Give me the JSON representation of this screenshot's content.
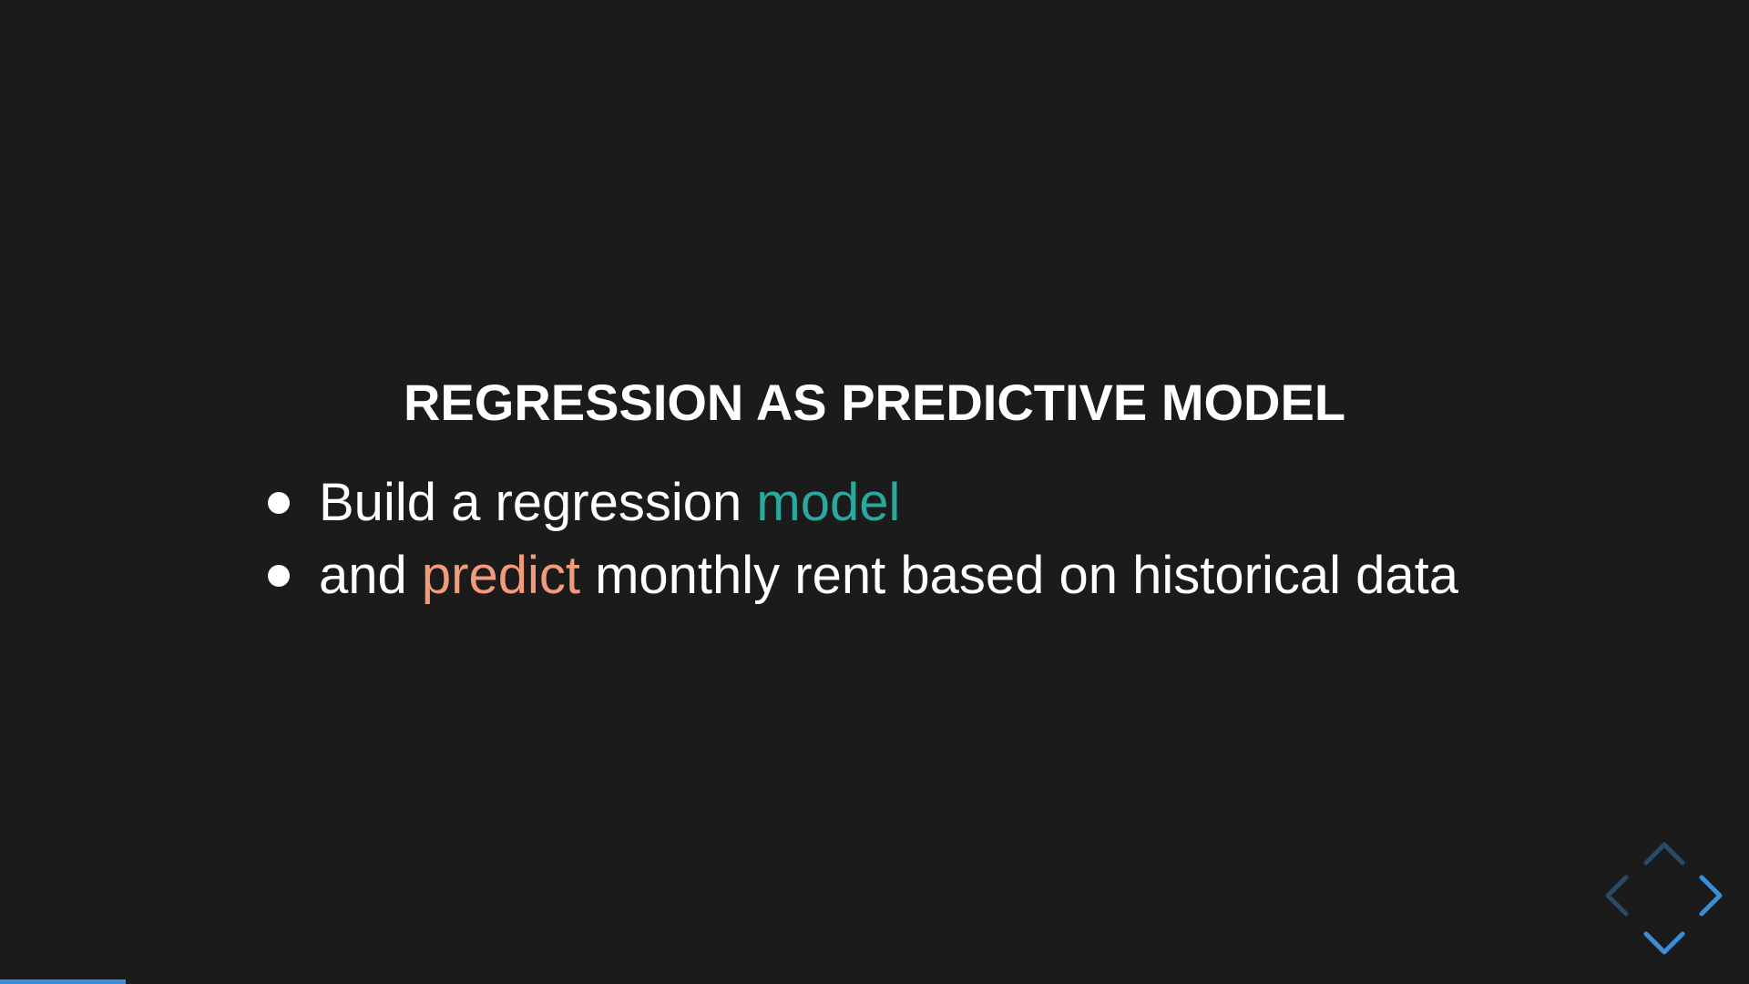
{
  "slide": {
    "title": "REGRESSION AS PREDICTIVE MODEL",
    "bullets": [
      {
        "before": "Build a regression ",
        "highlight": "model",
        "after": ""
      },
      {
        "before": "and ",
        "highlight": "predict",
        "after": " monthly rent based on historical data"
      }
    ]
  },
  "colors": {
    "background": "#1b1b1b",
    "text": "#ffffff",
    "highlight_model": "#2aa99c",
    "highlight_predict": "#f39a78",
    "accent": "#3b8fd9",
    "control_disabled": "#284a66"
  },
  "controls": {
    "up": "chevron-up-icon",
    "down": "chevron-down-icon",
    "left": "chevron-left-icon",
    "right": "chevron-right-icon"
  },
  "progress": {
    "fraction": 0.072
  }
}
